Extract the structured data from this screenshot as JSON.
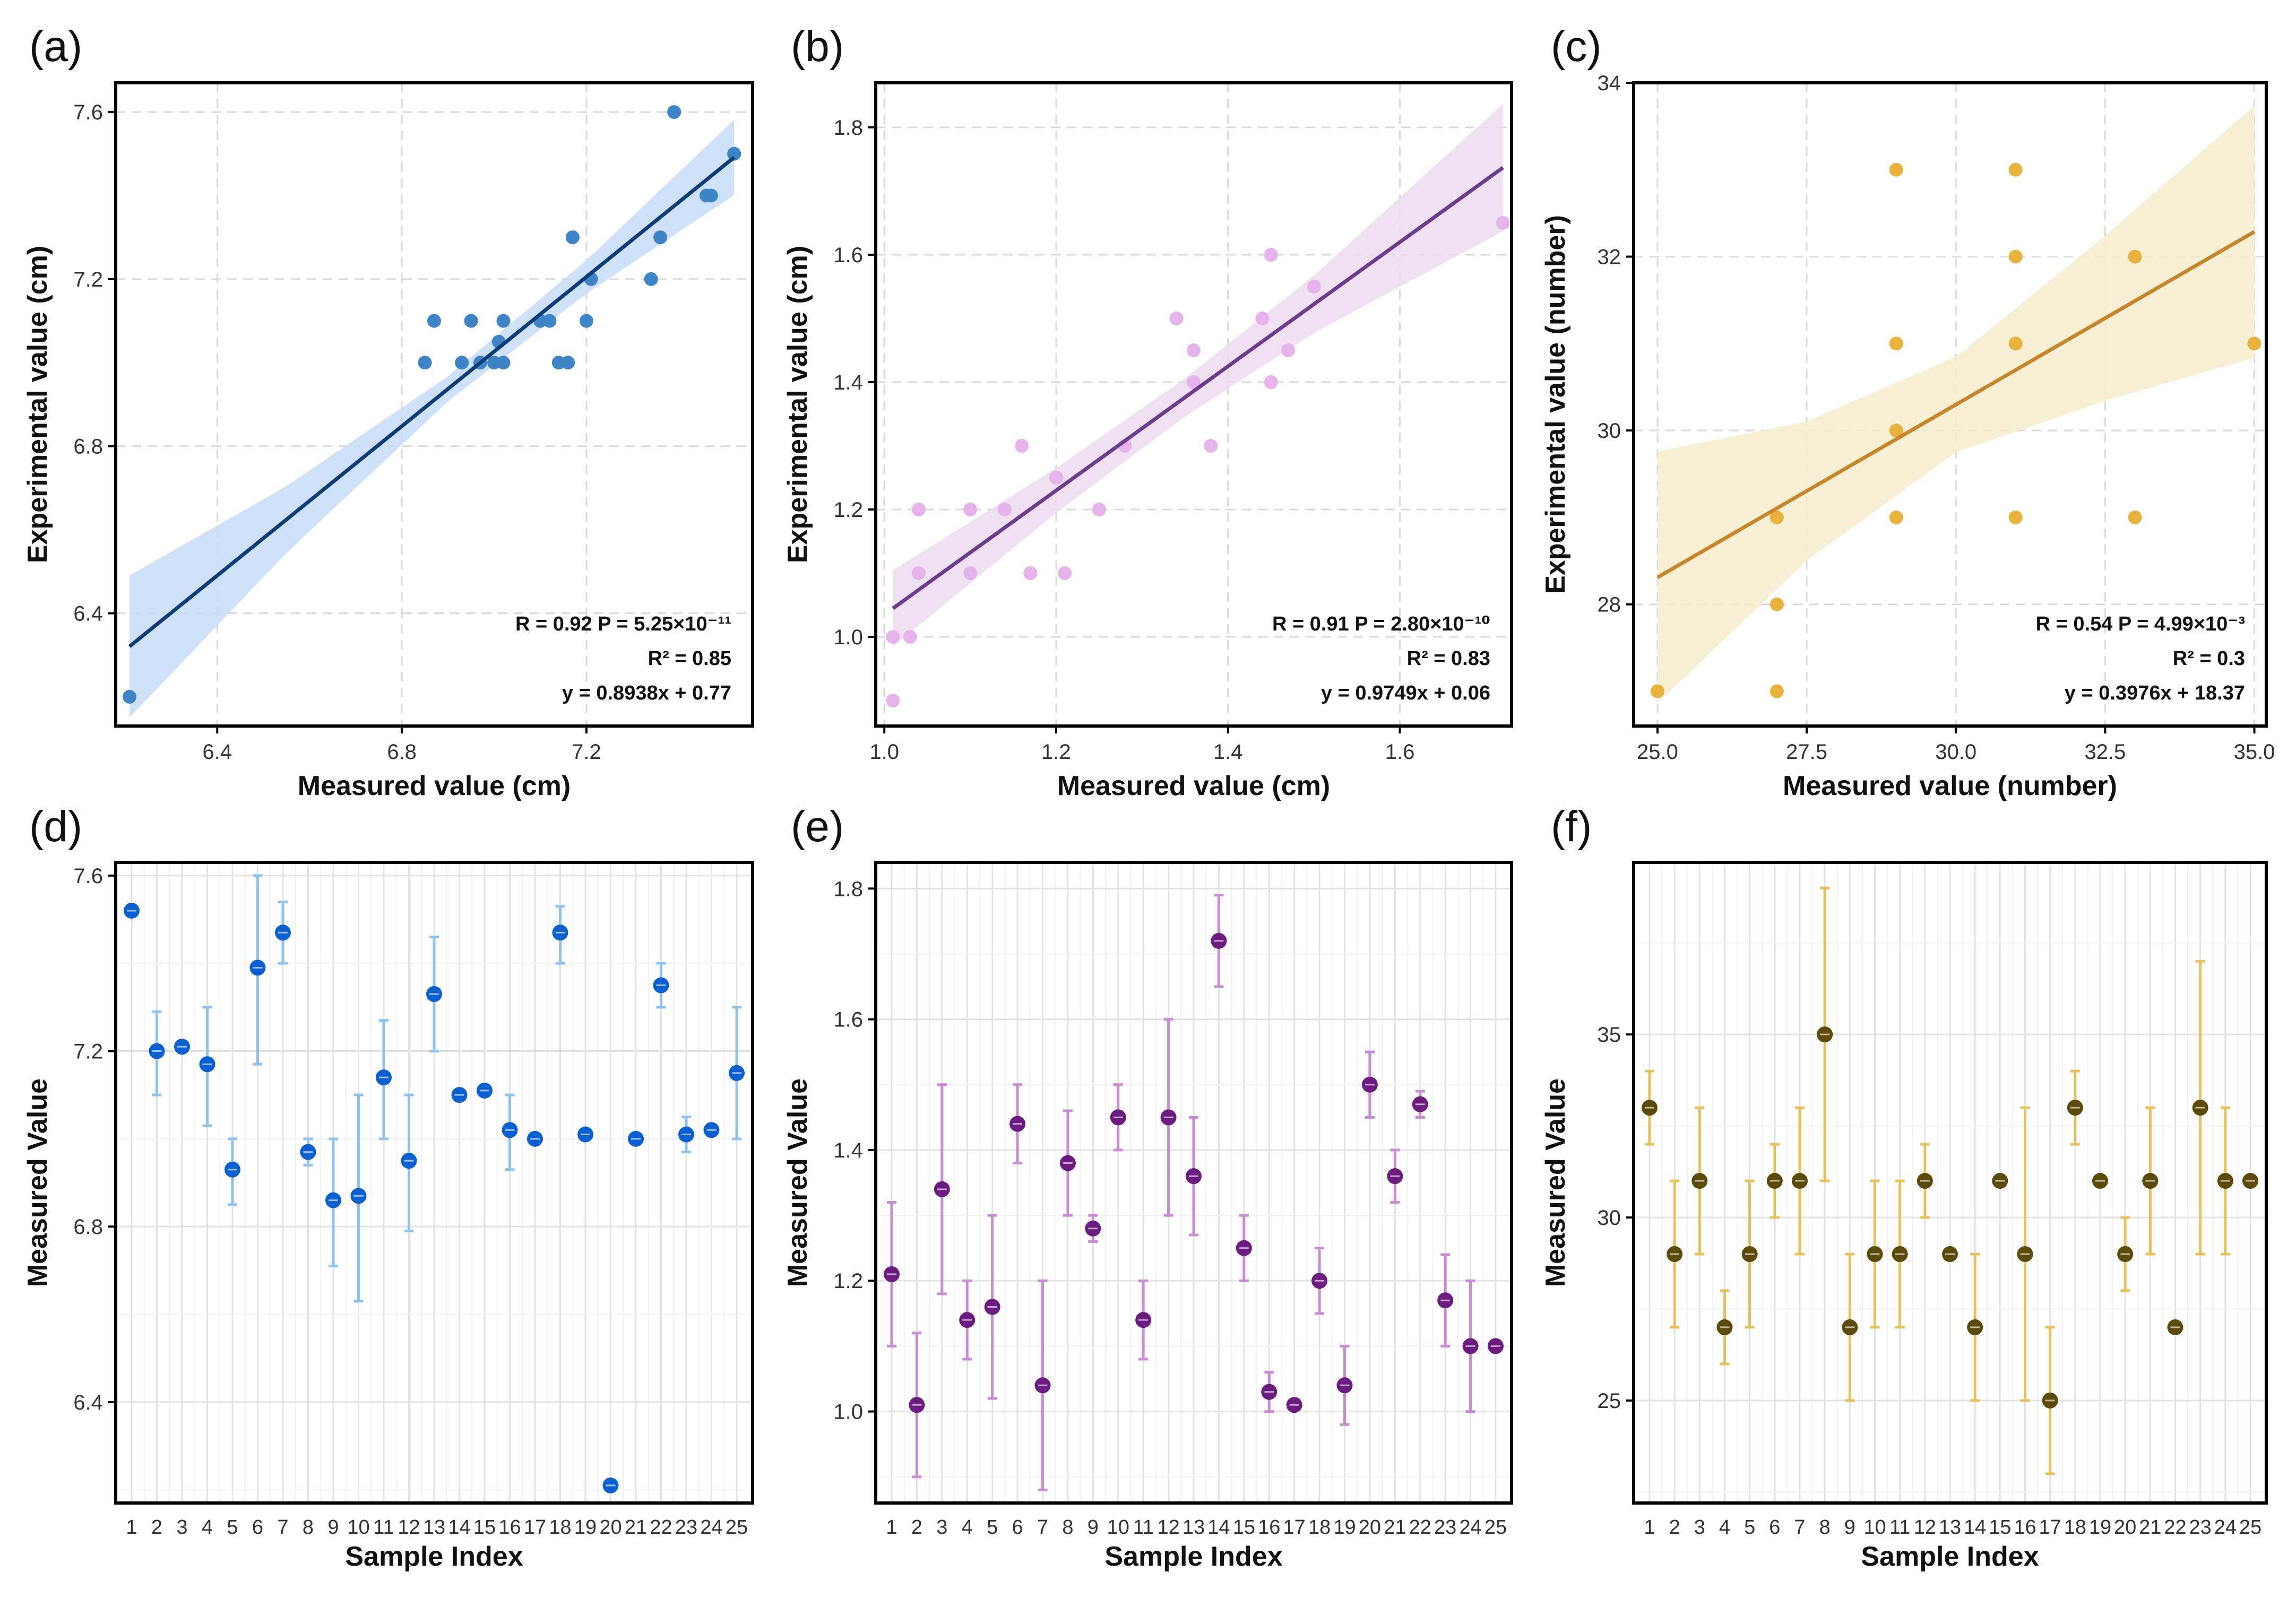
{
  "figure": {
    "title": "Six-panel regression and measurement variability figure"
  },
  "chart_data": [
    {
      "panel": "(a)",
      "type": "scatter",
      "title": "",
      "xlabel": "Measured value (cm)",
      "ylabel": "Experimental value (cm)",
      "xlim": [
        6.18,
        7.56
      ],
      "ylim": [
        6.13,
        7.67
      ],
      "xticks": [
        6.4,
        6.8,
        7.2
      ],
      "yticks": [
        6.4,
        6.8,
        7.2,
        7.6
      ],
      "tick_decimals": 1,
      "grid": true,
      "points": [
        [
          6.21,
          6.2
        ],
        [
          6.85,
          7.0
        ],
        [
          6.87,
          7.1
        ],
        [
          6.93,
          7.0
        ],
        [
          6.95,
          7.1
        ],
        [
          6.97,
          7.0
        ],
        [
          7.0,
          7.0
        ],
        [
          7.01,
          7.05
        ],
        [
          7.02,
          7.0
        ],
        [
          7.02,
          7.1
        ],
        [
          7.1,
          7.1
        ],
        [
          7.12,
          7.1
        ],
        [
          7.14,
          7.0
        ],
        [
          7.16,
          7.0
        ],
        [
          7.17,
          7.3
        ],
        [
          7.2,
          7.1
        ],
        [
          7.21,
          7.2
        ],
        [
          7.34,
          7.2
        ],
        [
          7.36,
          7.3
        ],
        [
          7.39,
          7.6
        ],
        [
          7.46,
          7.4
        ],
        [
          7.47,
          7.4
        ],
        [
          7.52,
          7.5
        ]
      ],
      "fit": {
        "slope": 0.8938,
        "intercept": 0.77,
        "x_range": [
          6.21,
          7.52
        ],
        "band": [
          [
            6.21,
            0.17
          ],
          [
            6.55,
            0.08
          ],
          [
            6.9,
            0.03
          ],
          [
            7.2,
            0.04
          ],
          [
            7.52,
            0.09
          ]
        ]
      },
      "stats": {
        "line1": "R = 0.92  P = 5.25×10⁻¹¹",
        "line2": "R² = 0.85",
        "line3": "y = 0.8938x + 0.77"
      },
      "colors": {
        "point": "#3d85c6",
        "line": "#0b3d78",
        "band": "#c7dcf7"
      }
    },
    {
      "panel": "(b)",
      "type": "scatter",
      "title": "",
      "xlabel": "Measured value (cm)",
      "ylabel": "Experimental value (cm)",
      "xlim": [
        0.99,
        1.73
      ],
      "ylim": [
        0.86,
        1.87
      ],
      "xticks": [
        1.0,
        1.2,
        1.4,
        1.6
      ],
      "yticks": [
        1.0,
        1.2,
        1.4,
        1.6,
        1.8
      ],
      "tick_decimals": 1,
      "grid": true,
      "points": [
        [
          1.01,
          0.9
        ],
        [
          1.01,
          1.0
        ],
        [
          1.03,
          1.0
        ],
        [
          1.04,
          1.1
        ],
        [
          1.04,
          1.2
        ],
        [
          1.1,
          1.1
        ],
        [
          1.1,
          1.2
        ],
        [
          1.14,
          1.2
        ],
        [
          1.16,
          1.3
        ],
        [
          1.17,
          1.1
        ],
        [
          1.2,
          1.25
        ],
        [
          1.21,
          1.1
        ],
        [
          1.25,
          1.2
        ],
        [
          1.28,
          1.3
        ],
        [
          1.34,
          1.5
        ],
        [
          1.36,
          1.4
        ],
        [
          1.36,
          1.45
        ],
        [
          1.38,
          1.3
        ],
        [
          1.44,
          1.5
        ],
        [
          1.45,
          1.4
        ],
        [
          1.45,
          1.6
        ],
        [
          1.47,
          1.45
        ],
        [
          1.5,
          1.55
        ],
        [
          1.72,
          1.65
        ]
      ],
      "fit": {
        "slope": 0.9749,
        "intercept": 0.06,
        "x_range": [
          1.01,
          1.72
        ],
        "band": [
          [
            1.01,
            0.06
          ],
          [
            1.2,
            0.035
          ],
          [
            1.35,
            0.03
          ],
          [
            1.5,
            0.045
          ],
          [
            1.72,
            0.1
          ]
        ]
      },
      "stats": {
        "line1": "R = 0.91  P = 2.80×10⁻¹⁰",
        "line2": "R² = 0.83",
        "line3": "y = 0.9749x + 0.06"
      },
      "colors": {
        "point": "#e6b3ea",
        "line": "#6a3d8f",
        "band": "#ecdcee"
      }
    },
    {
      "panel": "(c)",
      "type": "scatter",
      "title": "",
      "xlabel": "Measured value (number)",
      "ylabel": "Experimental value (number)",
      "xlim": [
        24.6,
        35.2
      ],
      "ylim": [
        26.6,
        34.0
      ],
      "xticks": [
        25.0,
        27.5,
        30.0,
        32.5,
        35.0
      ],
      "yticks": [
        28,
        30,
        32,
        34
      ],
      "tick_decimals_x": 1,
      "tick_decimals_y": 0,
      "grid": true,
      "points": [
        [
          25,
          27
        ],
        [
          27,
          27
        ],
        [
          27,
          28
        ],
        [
          27,
          29
        ],
        [
          29,
          29
        ],
        [
          29,
          30
        ],
        [
          29,
          31
        ],
        [
          29,
          33
        ],
        [
          31,
          29
        ],
        [
          31,
          31
        ],
        [
          31,
          32
        ],
        [
          31,
          33
        ],
        [
          33,
          29
        ],
        [
          33,
          32
        ],
        [
          35,
          31
        ]
      ],
      "fit": {
        "slope": 0.3976,
        "intercept": 18.37,
        "x_range": [
          25,
          35
        ],
        "band": [
          [
            25,
            1.45
          ],
          [
            27.5,
            0.8
          ],
          [
            30,
            0.55
          ],
          [
            32.5,
            0.95
          ],
          [
            35,
            1.45
          ]
        ]
      },
      "stats": {
        "line1": "R = 0.54  P = 4.99×10⁻³",
        "line2": "R² = 0.3",
        "line3": "y = 0.3976x + 18.37"
      },
      "colors": {
        "point": "#e8b23c",
        "line": "#c8862c",
        "band": "#f7edcd"
      }
    },
    {
      "panel": "(d)",
      "type": "errorbar",
      "title": "",
      "xlabel": "Sample Index",
      "ylabel": "Measured Value",
      "ylim": [
        6.17,
        7.63
      ],
      "yticks": [
        6.4,
        6.8,
        7.2,
        7.6
      ],
      "tick_decimals": 1,
      "categories": [
        "1",
        "2",
        "3",
        "4",
        "5",
        "6",
        "7",
        "8",
        "9",
        "10",
        "11",
        "12",
        "13",
        "14",
        "15",
        "16",
        "17",
        "18",
        "19",
        "20",
        "21",
        "22",
        "23",
        "24",
        "25"
      ],
      "values": [
        7.52,
        7.2,
        7.21,
        7.17,
        6.93,
        7.39,
        7.47,
        6.97,
        6.86,
        6.87,
        7.14,
        6.95,
        7.33,
        7.1,
        7.11,
        7.02,
        7.0,
        7.47,
        7.01,
        6.21,
        7.0,
        7.35,
        7.01,
        7.02,
        7.15
      ],
      "err_low": [
        7.52,
        7.1,
        7.21,
        7.03,
        6.85,
        7.17,
        7.4,
        6.94,
        6.71,
        6.63,
        7.0,
        6.79,
        7.2,
        7.1,
        7.11,
        6.93,
        7.0,
        7.4,
        7.01,
        6.21,
        7.0,
        7.3,
        6.97,
        7.02,
        7.0
      ],
      "err_high": [
        7.52,
        7.29,
        7.21,
        7.3,
        7.0,
        7.6,
        7.54,
        7.0,
        7.0,
        7.1,
        7.27,
        7.1,
        7.46,
        7.1,
        7.11,
        7.1,
        7.0,
        7.53,
        7.01,
        6.21,
        7.0,
        7.4,
        7.05,
        7.02,
        7.3
      ],
      "colors": {
        "point": "#0a60d0",
        "bar": "#8ec3f0"
      }
    },
    {
      "panel": "(e)",
      "type": "errorbar",
      "title": "",
      "xlabel": "Sample Index",
      "ylabel": "Measured Value",
      "ylim": [
        0.86,
        1.84
      ],
      "yticks": [
        1.0,
        1.2,
        1.4,
        1.6,
        1.8
      ],
      "tick_decimals": 1,
      "categories": [
        "1",
        "2",
        "3",
        "4",
        "5",
        "6",
        "7",
        "8",
        "9",
        "10",
        "11",
        "12",
        "13",
        "14",
        "15",
        "16",
        "17",
        "18",
        "19",
        "20",
        "21",
        "22",
        "23",
        "24",
        "25"
      ],
      "values": [
        1.21,
        1.01,
        1.34,
        1.14,
        1.16,
        1.44,
        1.04,
        1.38,
        1.28,
        1.45,
        1.14,
        1.45,
        1.36,
        1.72,
        1.25,
        1.03,
        1.01,
        1.2,
        1.04,
        1.5,
        1.36,
        1.47,
        1.17,
        1.1,
        1.1
      ],
      "err_low": [
        1.1,
        0.9,
        1.18,
        1.08,
        1.02,
        1.38,
        0.88,
        1.3,
        1.26,
        1.4,
        1.08,
        1.3,
        1.27,
        1.65,
        1.2,
        1.0,
        1.01,
        1.15,
        0.98,
        1.45,
        1.32,
        1.45,
        1.1,
        1.0,
        1.1
      ],
      "err_high": [
        1.32,
        1.12,
        1.5,
        1.2,
        1.3,
        1.5,
        1.2,
        1.46,
        1.3,
        1.5,
        1.2,
        1.6,
        1.45,
        1.79,
        1.3,
        1.06,
        1.01,
        1.25,
        1.1,
        1.55,
        1.4,
        1.49,
        1.24,
        1.2,
        1.1
      ],
      "colors": {
        "point": "#6c1c80",
        "bar": "#c98bd6"
      }
    },
    {
      "panel": "(f)",
      "type": "errorbar",
      "title": "",
      "xlabel": "Sample Index",
      "ylabel": "Measured Value",
      "ylim": [
        22.2,
        39.7
      ],
      "yticks": [
        25,
        30,
        35
      ],
      "tick_decimals": 0,
      "categories": [
        "1",
        "2",
        "3",
        "4",
        "5",
        "6",
        "7",
        "8",
        "9",
        "10",
        "11",
        "12",
        "13",
        "14",
        "15",
        "16",
        "17",
        "18",
        "19",
        "20",
        "21",
        "22",
        "23",
        "24",
        "25"
      ],
      "values": [
        33,
        29,
        31,
        27,
        29,
        31,
        31,
        35,
        27,
        29,
        29,
        31,
        29,
        27,
        31,
        29,
        25,
        33,
        31,
        29,
        31,
        27,
        33,
        31,
        31
      ],
      "err_low": [
        32,
        27,
        29,
        26,
        27,
        30,
        29,
        31,
        25,
        27,
        27,
        30,
        29,
        25,
        31,
        25,
        23,
        32,
        31,
        28,
        29,
        27,
        29,
        29,
        31
      ],
      "err_high": [
        34,
        31,
        33,
        28,
        31,
        32,
        33,
        39,
        29,
        31,
        31,
        32,
        29,
        29,
        31,
        33,
        27,
        34,
        31,
        30,
        33,
        27,
        37,
        33,
        31
      ],
      "colors": {
        "point": "#5c4a08",
        "bar": "#e8c15a"
      }
    }
  ]
}
